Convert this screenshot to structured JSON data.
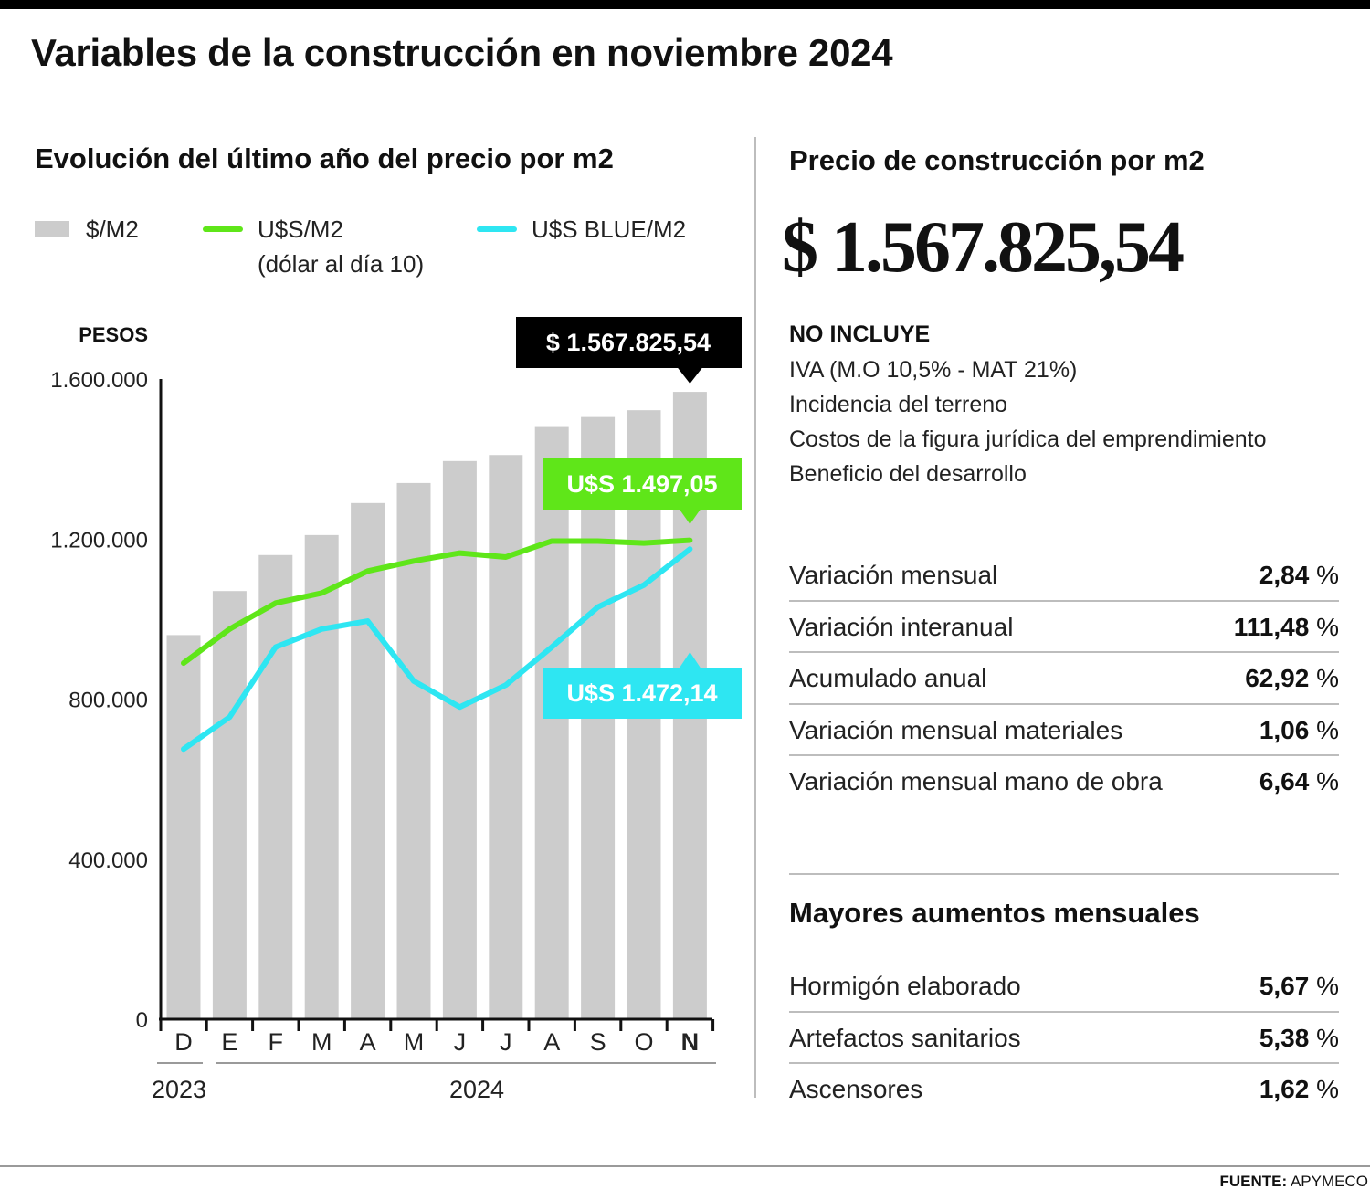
{
  "title": "Variables de la construcción en noviembre 2024",
  "chart_data": {
    "type": "bar",
    "title": "Evolución del último año del precio por m2",
    "ylabel": "PESOS",
    "ylim": [
      0,
      1600000
    ],
    "yticks": [
      "1.600.000",
      "1.200.000",
      "800.000",
      "400.000",
      "0"
    ],
    "yticks_values": [
      1600000,
      1200000,
      800000,
      400000,
      0
    ],
    "categories": [
      "D",
      "E",
      "F",
      "M",
      "A",
      "M",
      "J",
      "J",
      "A",
      "S",
      "O",
      "N"
    ],
    "highlight_category_index": 11,
    "year_labels": [
      "2023",
      "2024"
    ],
    "legend": [
      {
        "label": "$/M2",
        "color": "#cccccc"
      },
      {
        "label": "U$S/M2",
        "sublabel": "(dólar al día 10)",
        "color": "#5fe619"
      },
      {
        "label": "U$S BLUE/M2",
        "color": "#2ee6f2"
      }
    ],
    "legend_position": "top",
    "grid": false,
    "series": [
      {
        "name": "$/M2",
        "type": "bar",
        "color": "#cccccc",
        "values": [
          960000,
          1070000,
          1160000,
          1210000,
          1290000,
          1340000,
          1395000,
          1410000,
          1480000,
          1505000,
          1522000,
          1567825.54
        ]
      },
      {
        "name": "U$S/M2",
        "type": "line",
        "color": "#5fe619",
        "values": [
          890000,
          975000,
          1040000,
          1065000,
          1120000,
          1145000,
          1165000,
          1155000,
          1195000,
          1195000,
          1190000,
          1197000
        ]
      },
      {
        "name": "U$S BLUE/M2",
        "type": "line",
        "color": "#2ee6f2",
        "values": [
          675000,
          755000,
          930000,
          975000,
          995000,
          845000,
          780000,
          835000,
          930000,
          1030000,
          1085000,
          1175000
        ]
      }
    ],
    "annotations": [
      {
        "text": "$ 1.567.825,54",
        "series": "$/M2",
        "bg": "#000000",
        "fg": "#ffffff"
      },
      {
        "text": "U$S 1.497,05",
        "series": "U$S/M2",
        "bg": "#5fe619",
        "fg": "#ffffff"
      },
      {
        "text": "U$S 1.472,14",
        "series": "U$S BLUE/M2",
        "bg": "#2ee6f2",
        "fg": "#ffffff"
      }
    ]
  },
  "right": {
    "title": "Precio de construcción por m2",
    "price": "$ 1.567.825,54",
    "excludes_heading": "NO INCLUYE",
    "excludes": [
      "IVA (M.O 10,5% - MAT 21%)",
      "Incidencia del terreno",
      "Costos de la figura jurídica del emprendimiento",
      "Beneficio del desarrollo"
    ],
    "stats": [
      {
        "label": "Variación mensual",
        "value": "2,84",
        "unit": "%"
      },
      {
        "label": "Variación interanual",
        "value": "111,48",
        "unit": "%"
      },
      {
        "label": "Acumulado anual",
        "value": "62,92",
        "unit": "%"
      },
      {
        "label": "Variación mensual materiales",
        "value": "1,06",
        "unit": "%"
      },
      {
        "label": "Variación mensual mano de obra",
        "value": "6,64",
        "unit": "%"
      }
    ],
    "mayores_title": "Mayores aumentos mensuales",
    "mayores": [
      {
        "label": "Hormigón elaborado",
        "value": "5,67",
        "unit": "%"
      },
      {
        "label": "Artefactos sanitarios",
        "value": "5,38",
        "unit": "%"
      },
      {
        "label": "Ascensores",
        "value": "1,62",
        "unit": "%"
      }
    ]
  },
  "source_label": "FUENTE:",
  "source_value": "APYMECO"
}
